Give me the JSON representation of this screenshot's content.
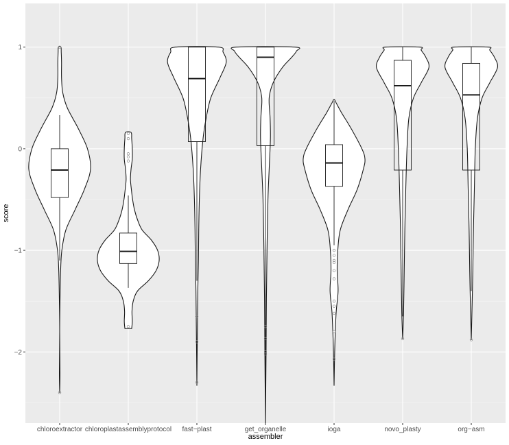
{
  "chart_data": {
    "type": "violin",
    "title": "",
    "xlabel": "assembler",
    "ylabel": "score",
    "ylim": [
      -2.7,
      1.43
    ],
    "y_ticks": [
      1,
      0,
      -1,
      -2
    ],
    "y_tick_labels": [
      "1",
      "0",
      "−1",
      "−2"
    ],
    "grid": true,
    "categories": [
      "chloroextractor",
      "chloroplastassemblyprotocol",
      "fast−plast",
      "get_organelle",
      "ioga",
      "novo_plasty",
      "org−asm"
    ],
    "groups": [
      {
        "name": "chloroextractor",
        "box": {
          "q1": -0.48,
          "median": -0.21,
          "q3": 0.0,
          "whisker_low": -1.1,
          "whisker_high": 0.33
        },
        "outliers": [
          1.0,
          -2.4
        ],
        "violin": [
          [
            -2.4,
            0.0
          ],
          [
            -2.2,
            0.01
          ],
          [
            -1.8,
            0.0
          ],
          [
            -1.5,
            0.01
          ],
          [
            -1.2,
            0.03
          ],
          [
            -1.0,
            0.07
          ],
          [
            -0.8,
            0.2
          ],
          [
            -0.6,
            0.5
          ],
          [
            -0.4,
            0.8
          ],
          [
            -0.2,
            1.0
          ],
          [
            0.0,
            0.9
          ],
          [
            0.2,
            0.6
          ],
          [
            0.4,
            0.25
          ],
          [
            0.55,
            0.1
          ],
          [
            0.7,
            0.06
          ],
          [
            0.85,
            0.06
          ],
          [
            0.95,
            0.05
          ],
          [
            1.0,
            0.04
          ]
        ]
      },
      {
        "name": "chloroplastassemblyprotocol",
        "box": {
          "q1": -1.13,
          "median": -1.01,
          "q3": -0.83,
          "whisker_low": -1.37,
          "whisker_high": -0.46
        },
        "outliers": [
          0.15,
          0.1,
          -0.05,
          -0.08,
          -0.12,
          -1.75
        ],
        "violin": [
          [
            -1.77,
            0.11
          ],
          [
            -1.7,
            0.13
          ],
          [
            -1.6,
            0.12
          ],
          [
            -1.5,
            0.16
          ],
          [
            -1.4,
            0.3
          ],
          [
            -1.3,
            0.65
          ],
          [
            -1.2,
            0.9
          ],
          [
            -1.1,
            1.0
          ],
          [
            -1.0,
            0.95
          ],
          [
            -0.9,
            0.75
          ],
          [
            -0.8,
            0.45
          ],
          [
            -0.7,
            0.3
          ],
          [
            -0.6,
            0.2
          ],
          [
            -0.5,
            0.14
          ],
          [
            -0.4,
            0.1
          ],
          [
            -0.3,
            0.07
          ],
          [
            -0.2,
            0.09
          ],
          [
            -0.1,
            0.13
          ],
          [
            0.0,
            0.13
          ],
          [
            0.1,
            0.11
          ],
          [
            0.16,
            0.09
          ]
        ]
      },
      {
        "name": "fast−plast",
        "box": {
          "q1": 0.07,
          "median": 0.69,
          "q3": 1.0,
          "whisker_low": -1.3,
          "whisker_high": 1.0
        },
        "outliers": [
          -1.65,
          -1.9,
          -2.3
        ],
        "violin": [
          [
            -2.33,
            0.0
          ],
          [
            -2.0,
            0.01
          ],
          [
            -1.7,
            0.02
          ],
          [
            -1.4,
            0.03
          ],
          [
            -1.1,
            0.05
          ],
          [
            -0.8,
            0.06
          ],
          [
            -0.5,
            0.08
          ],
          [
            -0.2,
            0.12
          ],
          [
            0.1,
            0.2
          ],
          [
            0.3,
            0.3
          ],
          [
            0.5,
            0.45
          ],
          [
            0.7,
            0.75
          ],
          [
            0.85,
            0.95
          ],
          [
            0.95,
            0.85
          ],
          [
            1.0,
            0.7
          ]
        ]
      },
      {
        "name": "get_organelle",
        "box": {
          "q1": 0.03,
          "median": 0.9,
          "q3": 1.0,
          "whisker_low": -2.7,
          "whisker_high": 1.0
        },
        "outliers": [
          -1.75,
          -1.87,
          -2.0,
          -2.02
        ],
        "violin": [
          [
            -2.7,
            0.0
          ],
          [
            -2.0,
            0.02
          ],
          [
            -1.5,
            0.03
          ],
          [
            -1.0,
            0.05
          ],
          [
            -0.5,
            0.08
          ],
          [
            -0.2,
            0.12
          ],
          [
            0.1,
            0.16
          ],
          [
            0.3,
            0.15
          ],
          [
            0.5,
            0.12
          ],
          [
            0.65,
            0.25
          ],
          [
            0.8,
            0.55
          ],
          [
            0.9,
            0.85
          ],
          [
            0.96,
            1.0
          ],
          [
            1.0,
            0.95
          ]
        ]
      },
      {
        "name": "ioga",
        "box": {
          "q1": -0.37,
          "median": -0.14,
          "q3": 0.04,
          "whisker_low": -0.95,
          "whisker_high": 0.47
        },
        "outliers": [
          -1.0,
          -1.05,
          -1.1,
          -1.12,
          -1.2,
          -1.28,
          -1.5,
          -1.55,
          -1.62,
          -1.8,
          -2.07
        ],
        "violin": [
          [
            -2.33,
            0.0
          ],
          [
            -2.0,
            0.02
          ],
          [
            -1.8,
            0.04
          ],
          [
            -1.6,
            0.07
          ],
          [
            -1.4,
            0.13
          ],
          [
            -1.2,
            0.1
          ],
          [
            -1.0,
            0.12
          ],
          [
            -0.8,
            0.2
          ],
          [
            -0.6,
            0.45
          ],
          [
            -0.4,
            0.75
          ],
          [
            -0.2,
            0.95
          ],
          [
            -0.1,
            1.0
          ],
          [
            0.0,
            0.9
          ],
          [
            0.2,
            0.55
          ],
          [
            0.35,
            0.25
          ],
          [
            0.45,
            0.07
          ],
          [
            0.48,
            0.02
          ]
        ]
      },
      {
        "name": "novo_plasty",
        "box": {
          "q1": -0.21,
          "median": 0.62,
          "q3": 0.87,
          "whisker_low": -1.65,
          "whisker_high": 1.0
        },
        "outliers": [
          -1.87
        ],
        "violin": [
          [
            -1.87,
            0.0
          ],
          [
            -1.6,
            0.03
          ],
          [
            -1.2,
            0.05
          ],
          [
            -0.8,
            0.07
          ],
          [
            -0.4,
            0.1
          ],
          [
            0.0,
            0.14
          ],
          [
            0.3,
            0.2
          ],
          [
            0.5,
            0.35
          ],
          [
            0.65,
            0.6
          ],
          [
            0.8,
            0.85
          ],
          [
            0.9,
            0.75
          ],
          [
            0.97,
            0.6
          ],
          [
            1.0,
            0.55
          ]
        ]
      },
      {
        "name": "org−asm",
        "box": {
          "q1": -0.21,
          "median": 0.53,
          "q3": 0.84,
          "whisker_low": -1.4,
          "whisker_high": 1.0
        },
        "outliers": [
          -1.88
        ],
        "violin": [
          [
            -1.88,
            0.0
          ],
          [
            -1.5,
            0.03
          ],
          [
            -1.2,
            0.05
          ],
          [
            -0.8,
            0.07
          ],
          [
            -0.4,
            0.1
          ],
          [
            0.0,
            0.13
          ],
          [
            0.3,
            0.2
          ],
          [
            0.5,
            0.35
          ],
          [
            0.65,
            0.6
          ],
          [
            0.8,
            0.85
          ],
          [
            0.9,
            0.75
          ],
          [
            0.97,
            0.6
          ],
          [
            1.0,
            0.55
          ]
        ]
      }
    ]
  }
}
